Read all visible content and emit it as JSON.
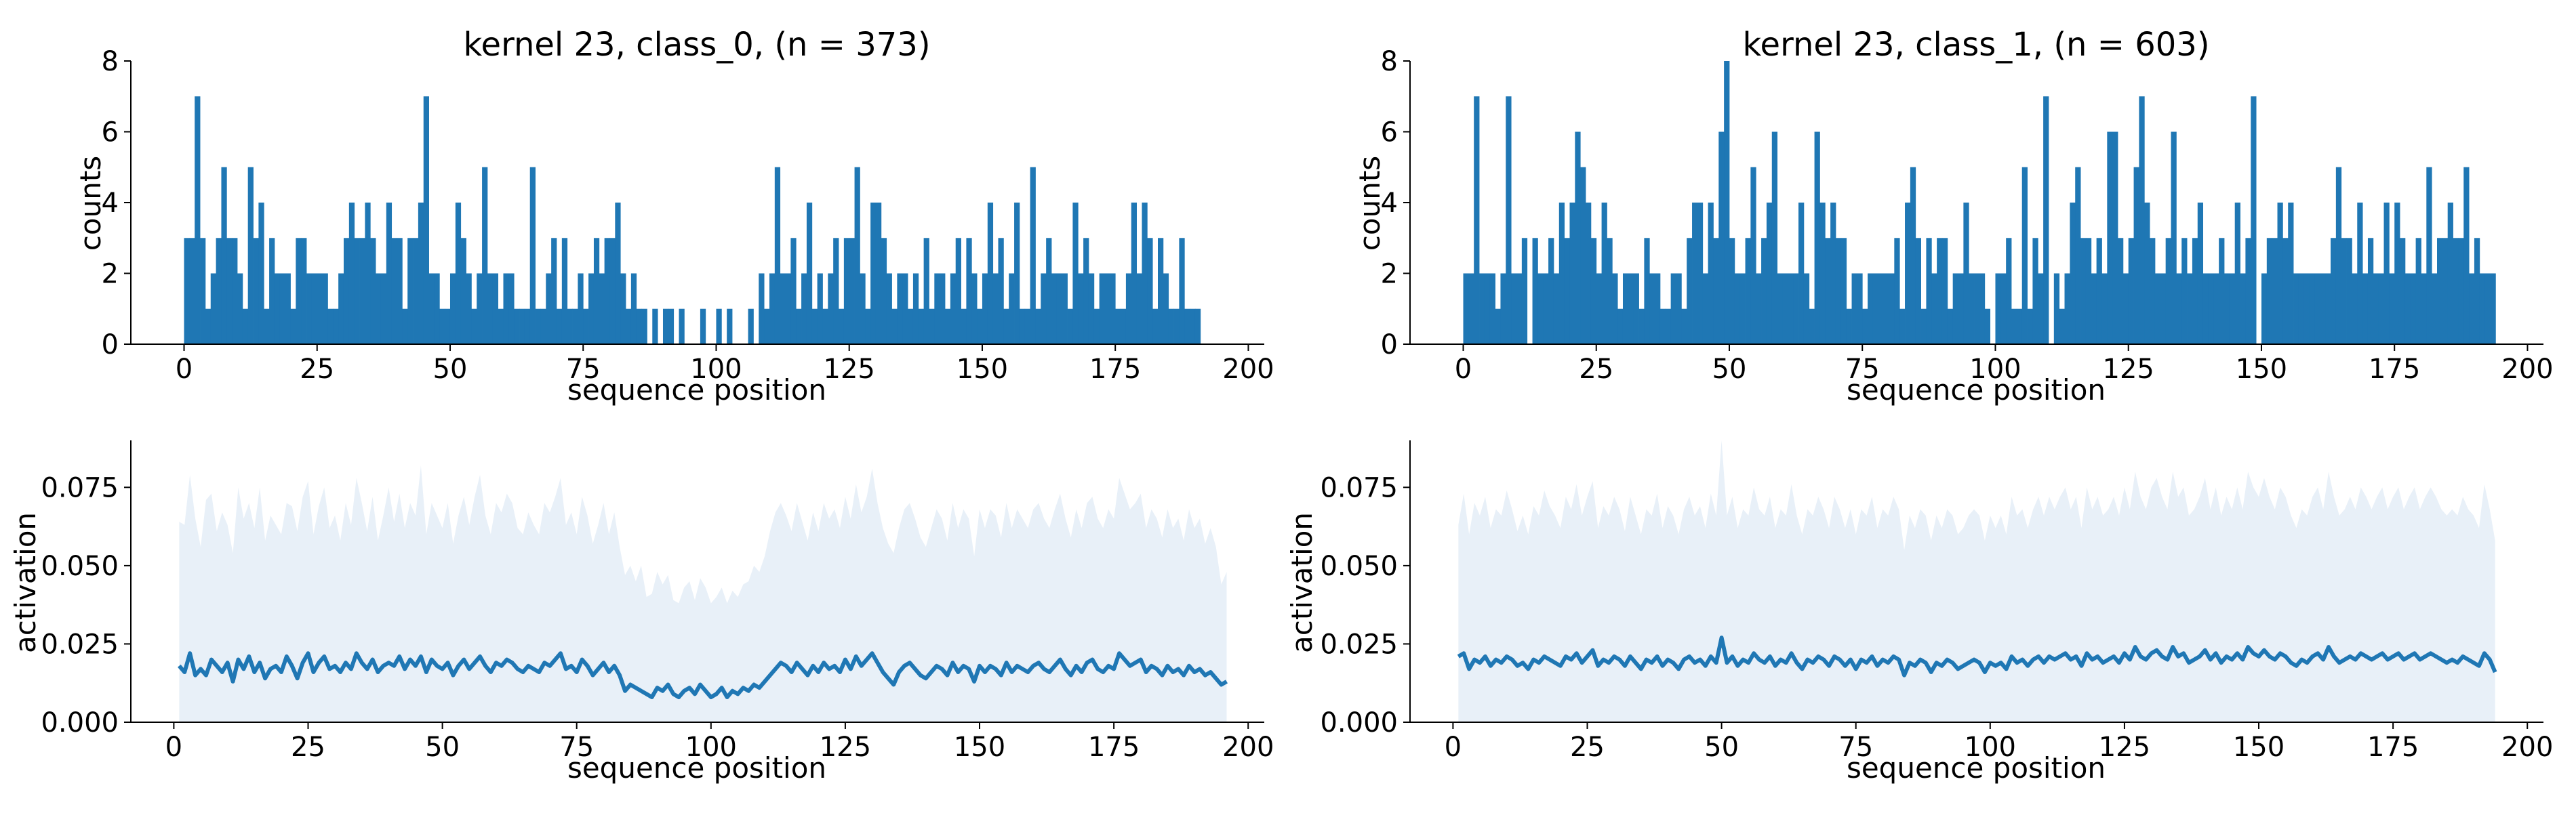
{
  "chart_data": [
    {
      "type": "bar",
      "title": "kernel 23, class_0, (n = 373)",
      "xlabel": "sequence position",
      "ylabel": "counts",
      "xlim": [
        -10,
        203
      ],
      "ylim": [
        0,
        8
      ],
      "xticks": [
        "0",
        "25",
        "50",
        "75",
        "100",
        "125",
        "150",
        "175",
        "200"
      ],
      "yticks": [
        "0",
        "2",
        "4",
        "6",
        "8"
      ],
      "x_start": 0,
      "values": [
        3,
        3,
        7,
        3,
        1,
        2,
        3,
        5,
        3,
        3,
        2,
        1,
        5,
        3,
        4,
        1,
        3,
        2,
        2,
        2,
        1,
        3,
        3,
        2,
        2,
        2,
        2,
        1,
        1,
        2,
        3,
        4,
        3,
        3,
        4,
        3,
        2,
        2,
        4,
        3,
        3,
        1,
        3,
        3,
        4,
        7,
        2,
        2,
        1,
        1,
        2,
        4,
        3,
        2,
        1,
        2,
        5,
        2,
        2,
        1,
        2,
        2,
        1,
        1,
        1,
        5,
        1,
        1,
        2,
        3,
        1,
        3,
        1,
        1,
        2,
        1,
        2,
        3,
        2,
        3,
        3,
        4,
        2,
        1,
        2,
        1,
        1,
        0,
        1,
        0,
        1,
        1,
        0,
        1,
        0,
        0,
        0,
        1,
        0,
        0,
        1,
        0,
        1,
        0,
        0,
        0,
        1,
        0,
        2,
        1,
        2,
        5,
        2,
        2,
        3,
        1,
        2,
        4,
        1,
        2,
        1,
        2,
        3,
        1,
        3,
        3,
        5,
        2,
        1,
        4,
        4,
        3,
        2,
        1,
        2,
        2,
        1,
        2,
        1,
        3,
        1,
        2,
        2,
        1,
        2,
        3,
        1,
        3,
        2,
        1,
        2,
        4,
        2,
        3,
        1,
        2,
        4,
        1,
        1,
        5,
        1,
        2,
        3,
        2,
        2,
        2,
        1,
        4,
        2,
        3,
        2,
        1,
        2,
        2,
        2,
        1,
        1,
        2,
        4,
        2,
        4,
        3,
        1,
        3,
        2,
        1,
        1,
        3,
        1,
        1,
        1
      ],
      "color": "#1f77b4"
    },
    {
      "type": "bar",
      "title": "kernel 23, class_1, (n = 603)",
      "xlabel": "sequence position",
      "ylabel": "counts",
      "xlim": [
        -10,
        203
      ],
      "ylim": [
        0,
        8
      ],
      "xticks": [
        "0",
        "25",
        "50",
        "75",
        "100",
        "125",
        "150",
        "175",
        "200"
      ],
      "yticks": [
        "0",
        "2",
        "4",
        "6",
        "8"
      ],
      "x_start": 0,
      "values": [
        2,
        2,
        7,
        2,
        2,
        2,
        1,
        2,
        7,
        2,
        2,
        3,
        0,
        3,
        2,
        2,
        3,
        2,
        4,
        3,
        4,
        6,
        5,
        4,
        3,
        2,
        4,
        3,
        2,
        1,
        2,
        2,
        2,
        1,
        3,
        2,
        2,
        1,
        1,
        2,
        2,
        1,
        3,
        4,
        4,
        2,
        4,
        3,
        6,
        8,
        3,
        2,
        2,
        3,
        5,
        2,
        3,
        4,
        6,
        2,
        2,
        2,
        2,
        4,
        2,
        1,
        6,
        4,
        3,
        4,
        3,
        3,
        1,
        2,
        2,
        1,
        2,
        2,
        2,
        2,
        2,
        3,
        1,
        4,
        5,
        3,
        1,
        3,
        2,
        3,
        3,
        1,
        2,
        2,
        4,
        2,
        2,
        2,
        1,
        0,
        2,
        2,
        3,
        1,
        1,
        5,
        1,
        3,
        2,
        7,
        0,
        2,
        1,
        2,
        4,
        5,
        3,
        3,
        2,
        3,
        2,
        6,
        6,
        3,
        2,
        3,
        5,
        7,
        4,
        3,
        2,
        2,
        3,
        6,
        2,
        3,
        2,
        3,
        4,
        2,
        2,
        2,
        3,
        2,
        2,
        4,
        2,
        3,
        7,
        0,
        2,
        3,
        3,
        4,
        3,
        4,
        2,
        2,
        2,
        2,
        2,
        2,
        2,
        3,
        5,
        3,
        3,
        2,
        4,
        2,
        3,
        2,
        2,
        4,
        2,
        4,
        3,
        2,
        2,
        3,
        2,
        5,
        2,
        3,
        3,
        4,
        3,
        3,
        5,
        2,
        3,
        2,
        2,
        2
      ]
    },
    {
      "type": "area",
      "xlabel": "sequence position",
      "ylabel": "activation",
      "xlim": [
        -8,
        203
      ],
      "ylim": [
        0,
        0.09
      ],
      "xticks": [
        "0",
        "25",
        "50",
        "75",
        "100",
        "125",
        "150",
        "175",
        "200"
      ],
      "yticks": [
        "0.000",
        "0.025",
        "0.050",
        "0.075"
      ],
      "x_start": 1,
      "mean": [
        0.018,
        0.016,
        0.022,
        0.015,
        0.017,
        0.015,
        0.02,
        0.018,
        0.016,
        0.019,
        0.013,
        0.02,
        0.017,
        0.021,
        0.016,
        0.019,
        0.014,
        0.017,
        0.018,
        0.016,
        0.021,
        0.018,
        0.014,
        0.019,
        0.022,
        0.016,
        0.019,
        0.021,
        0.017,
        0.018,
        0.016,
        0.019,
        0.017,
        0.022,
        0.019,
        0.017,
        0.02,
        0.016,
        0.018,
        0.019,
        0.018,
        0.021,
        0.017,
        0.02,
        0.018,
        0.021,
        0.016,
        0.02,
        0.018,
        0.017,
        0.019,
        0.015,
        0.018,
        0.02,
        0.017,
        0.019,
        0.021,
        0.018,
        0.016,
        0.019,
        0.018,
        0.02,
        0.019,
        0.017,
        0.016,
        0.018,
        0.017,
        0.016,
        0.019,
        0.018,
        0.02,
        0.022,
        0.017,
        0.018,
        0.016,
        0.02,
        0.018,
        0.015,
        0.017,
        0.019,
        0.016,
        0.018,
        0.015,
        0.01,
        0.012,
        0.011,
        0.01,
        0.009,
        0.008,
        0.011,
        0.01,
        0.012,
        0.009,
        0.008,
        0.01,
        0.011,
        0.009,
        0.012,
        0.01,
        0.008,
        0.009,
        0.011,
        0.008,
        0.01,
        0.009,
        0.011,
        0.01,
        0.012,
        0.011,
        0.013,
        0.015,
        0.017,
        0.019,
        0.018,
        0.016,
        0.019,
        0.017,
        0.015,
        0.018,
        0.016,
        0.019,
        0.017,
        0.018,
        0.016,
        0.02,
        0.017,
        0.021,
        0.018,
        0.02,
        0.022,
        0.019,
        0.016,
        0.014,
        0.012,
        0.016,
        0.018,
        0.019,
        0.017,
        0.015,
        0.014,
        0.016,
        0.018,
        0.017,
        0.015,
        0.019,
        0.016,
        0.018,
        0.017,
        0.013,
        0.018,
        0.016,
        0.018,
        0.017,
        0.015,
        0.019,
        0.016,
        0.018,
        0.017,
        0.016,
        0.018,
        0.019,
        0.017,
        0.016,
        0.018,
        0.02,
        0.017,
        0.015,
        0.018,
        0.016,
        0.019,
        0.02,
        0.017,
        0.016,
        0.018,
        0.017,
        0.022,
        0.02,
        0.018,
        0.019,
        0.02,
        0.016,
        0.018,
        0.017,
        0.015,
        0.018,
        0.016,
        0.017,
        0.015,
        0.018,
        0.016,
        0.017,
        0.015,
        0.016,
        0.014,
        0.012,
        0.013
      ],
      "upper": [
        0.064,
        0.063,
        0.079,
        0.065,
        0.056,
        0.071,
        0.073,
        0.061,
        0.067,
        0.063,
        0.054,
        0.075,
        0.065,
        0.07,
        0.062,
        0.075,
        0.058,
        0.066,
        0.063,
        0.06,
        0.07,
        0.069,
        0.061,
        0.072,
        0.077,
        0.06,
        0.069,
        0.075,
        0.062,
        0.066,
        0.058,
        0.07,
        0.063,
        0.078,
        0.07,
        0.061,
        0.072,
        0.058,
        0.066,
        0.075,
        0.064,
        0.073,
        0.062,
        0.07,
        0.066,
        0.082,
        0.06,
        0.07,
        0.066,
        0.062,
        0.07,
        0.057,
        0.066,
        0.072,
        0.063,
        0.072,
        0.079,
        0.066,
        0.06,
        0.07,
        0.067,
        0.073,
        0.07,
        0.062,
        0.06,
        0.067,
        0.063,
        0.06,
        0.07,
        0.067,
        0.072,
        0.078,
        0.063,
        0.067,
        0.06,
        0.072,
        0.066,
        0.057,
        0.063,
        0.07,
        0.06,
        0.067,
        0.056,
        0.047,
        0.05,
        0.045,
        0.05,
        0.04,
        0.041,
        0.048,
        0.044,
        0.047,
        0.039,
        0.038,
        0.043,
        0.045,
        0.039,
        0.046,
        0.043,
        0.038,
        0.04,
        0.043,
        0.038,
        0.042,
        0.04,
        0.044,
        0.045,
        0.05,
        0.048,
        0.053,
        0.061,
        0.067,
        0.07,
        0.066,
        0.061,
        0.07,
        0.064,
        0.058,
        0.067,
        0.061,
        0.07,
        0.065,
        0.068,
        0.062,
        0.072,
        0.065,
        0.076,
        0.067,
        0.072,
        0.081,
        0.07,
        0.062,
        0.057,
        0.054,
        0.062,
        0.068,
        0.07,
        0.065,
        0.059,
        0.056,
        0.062,
        0.068,
        0.065,
        0.058,
        0.07,
        0.062,
        0.068,
        0.065,
        0.053,
        0.068,
        0.062,
        0.068,
        0.066,
        0.059,
        0.07,
        0.062,
        0.068,
        0.065,
        0.062,
        0.068,
        0.07,
        0.065,
        0.062,
        0.068,
        0.073,
        0.065,
        0.059,
        0.068,
        0.062,
        0.07,
        0.072,
        0.065,
        0.062,
        0.068,
        0.065,
        0.078,
        0.073,
        0.068,
        0.07,
        0.073,
        0.062,
        0.068,
        0.065,
        0.059,
        0.068,
        0.062,
        0.065,
        0.058,
        0.068,
        0.062,
        0.065,
        0.057,
        0.062,
        0.056,
        0.044,
        0.048
      ],
      "line_color": "#1f77b4",
      "band_color": "#e8f0f8"
    },
    {
      "type": "area",
      "xlabel": "sequence position",
      "ylabel": "activation",
      "xlim": [
        -8,
        203
      ],
      "ylim": [
        0,
        0.09
      ],
      "xticks": [
        "0",
        "25",
        "50",
        "75",
        "100",
        "125",
        "150",
        "175",
        "200"
      ],
      "yticks": [
        "0.000",
        "0.025",
        "0.050",
        "0.075"
      ],
      "x_start": 1,
      "mean": [
        0.021,
        0.022,
        0.017,
        0.02,
        0.019,
        0.021,
        0.018,
        0.02,
        0.019,
        0.021,
        0.02,
        0.018,
        0.019,
        0.017,
        0.02,
        0.019,
        0.021,
        0.02,
        0.019,
        0.018,
        0.021,
        0.02,
        0.022,
        0.019,
        0.021,
        0.023,
        0.018,
        0.02,
        0.019,
        0.021,
        0.02,
        0.018,
        0.021,
        0.019,
        0.017,
        0.02,
        0.019,
        0.021,
        0.018,
        0.02,
        0.019,
        0.017,
        0.02,
        0.021,
        0.019,
        0.02,
        0.018,
        0.021,
        0.019,
        0.027,
        0.019,
        0.021,
        0.018,
        0.02,
        0.019,
        0.022,
        0.02,
        0.019,
        0.021,
        0.018,
        0.02,
        0.019,
        0.022,
        0.019,
        0.017,
        0.02,
        0.019,
        0.021,
        0.02,
        0.018,
        0.021,
        0.02,
        0.018,
        0.02,
        0.017,
        0.02,
        0.019,
        0.021,
        0.018,
        0.02,
        0.019,
        0.021,
        0.02,
        0.015,
        0.019,
        0.018,
        0.02,
        0.019,
        0.016,
        0.019,
        0.018,
        0.02,
        0.019,
        0.017,
        0.018,
        0.019,
        0.02,
        0.019,
        0.016,
        0.019,
        0.018,
        0.019,
        0.017,
        0.021,
        0.019,
        0.02,
        0.018,
        0.02,
        0.021,
        0.019,
        0.021,
        0.02,
        0.021,
        0.022,
        0.02,
        0.021,
        0.018,
        0.022,
        0.02,
        0.021,
        0.019,
        0.02,
        0.021,
        0.019,
        0.022,
        0.02,
        0.024,
        0.021,
        0.02,
        0.022,
        0.023,
        0.021,
        0.02,
        0.024,
        0.021,
        0.022,
        0.019,
        0.02,
        0.021,
        0.023,
        0.02,
        0.022,
        0.019,
        0.021,
        0.02,
        0.022,
        0.02,
        0.024,
        0.022,
        0.021,
        0.023,
        0.021,
        0.02,
        0.022,
        0.021,
        0.019,
        0.018,
        0.02,
        0.019,
        0.021,
        0.022,
        0.02,
        0.024,
        0.021,
        0.019,
        0.02,
        0.021,
        0.02,
        0.022,
        0.021,
        0.02,
        0.021,
        0.022,
        0.02,
        0.021,
        0.022,
        0.02,
        0.021,
        0.022,
        0.02,
        0.021,
        0.022,
        0.021,
        0.02,
        0.019,
        0.02,
        0.019,
        0.021,
        0.02,
        0.019,
        0.018,
        0.022,
        0.02,
        0.016
      ],
      "upper": [
        0.063,
        0.073,
        0.06,
        0.07,
        0.066,
        0.072,
        0.062,
        0.068,
        0.066,
        0.074,
        0.068,
        0.061,
        0.066,
        0.06,
        0.069,
        0.066,
        0.074,
        0.069,
        0.066,
        0.062,
        0.072,
        0.068,
        0.076,
        0.066,
        0.072,
        0.077,
        0.062,
        0.069,
        0.066,
        0.072,
        0.068,
        0.061,
        0.072,
        0.066,
        0.06,
        0.068,
        0.066,
        0.073,
        0.062,
        0.069,
        0.066,
        0.06,
        0.068,
        0.072,
        0.066,
        0.069,
        0.062,
        0.073,
        0.066,
        0.09,
        0.066,
        0.072,
        0.062,
        0.068,
        0.066,
        0.075,
        0.068,
        0.066,
        0.072,
        0.062,
        0.068,
        0.066,
        0.076,
        0.066,
        0.06,
        0.068,
        0.066,
        0.072,
        0.068,
        0.062,
        0.072,
        0.068,
        0.062,
        0.068,
        0.06,
        0.068,
        0.066,
        0.072,
        0.062,
        0.068,
        0.066,
        0.072,
        0.068,
        0.055,
        0.066,
        0.062,
        0.068,
        0.066,
        0.058,
        0.066,
        0.062,
        0.068,
        0.066,
        0.06,
        0.062,
        0.066,
        0.068,
        0.066,
        0.058,
        0.066,
        0.062,
        0.066,
        0.06,
        0.072,
        0.066,
        0.068,
        0.062,
        0.068,
        0.072,
        0.066,
        0.072,
        0.068,
        0.072,
        0.075,
        0.068,
        0.072,
        0.062,
        0.075,
        0.068,
        0.072,
        0.066,
        0.068,
        0.072,
        0.066,
        0.075,
        0.068,
        0.08,
        0.072,
        0.068,
        0.075,
        0.078,
        0.072,
        0.068,
        0.08,
        0.072,
        0.075,
        0.066,
        0.068,
        0.072,
        0.078,
        0.068,
        0.075,
        0.066,
        0.072,
        0.068,
        0.075,
        0.068,
        0.08,
        0.075,
        0.072,
        0.078,
        0.072,
        0.068,
        0.075,
        0.072,
        0.066,
        0.062,
        0.068,
        0.066,
        0.072,
        0.075,
        0.068,
        0.08,
        0.072,
        0.066,
        0.068,
        0.072,
        0.068,
        0.075,
        0.072,
        0.068,
        0.072,
        0.075,
        0.068,
        0.072,
        0.075,
        0.068,
        0.072,
        0.075,
        0.068,
        0.072,
        0.075,
        0.072,
        0.068,
        0.066,
        0.068,
        0.066,
        0.072,
        0.068,
        0.066,
        0.062,
        0.076,
        0.068,
        0.058
      ],
      "line_color": "#1f77b4",
      "band_color": "#e8f0f8"
    }
  ]
}
